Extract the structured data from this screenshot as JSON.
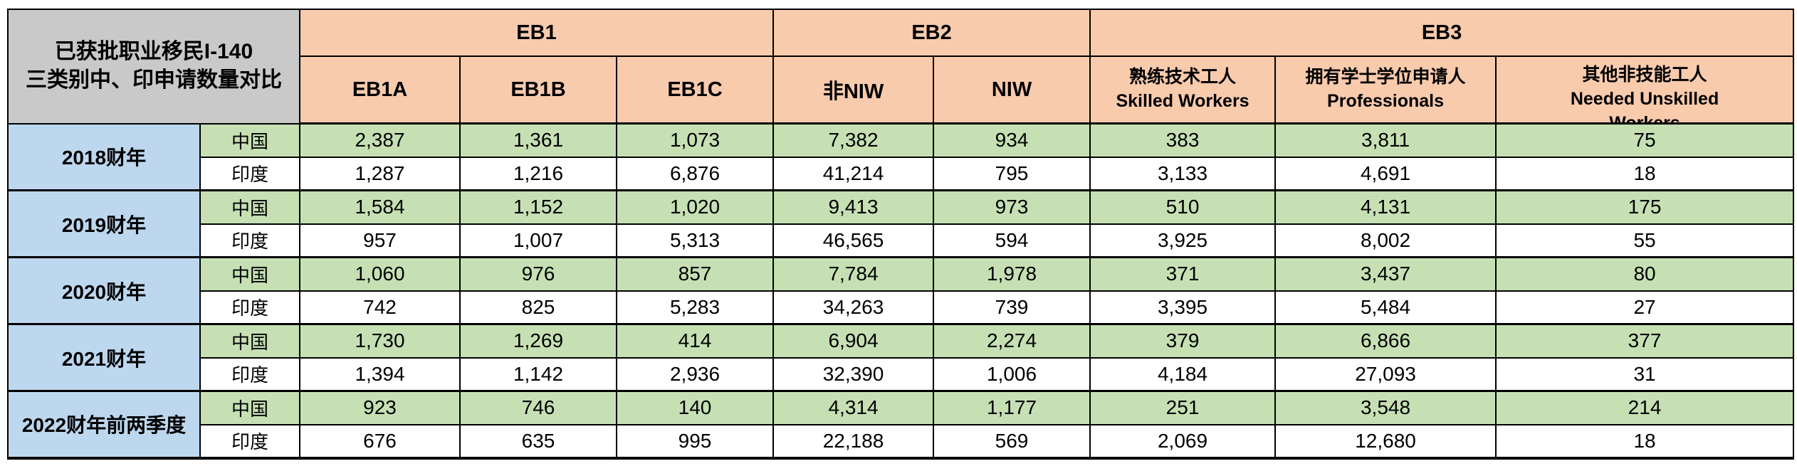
{
  "header": {
    "title_line1": "已获批职业移民I-140",
    "title_line2": "三类别中、印申请数量对比"
  },
  "column_groups": [
    {
      "label": "EB1"
    },
    {
      "label": "EB2"
    },
    {
      "label": "EB3"
    }
  ],
  "sub_columns": {
    "eb1a": "EB1A",
    "eb1b": "EB1B",
    "eb1c": "EB1C",
    "non_niw": "非NIW",
    "niw": "NIW",
    "skilled_zh": "熟练技术工人",
    "skilled_en": "Skilled Workers",
    "professionals_zh": "拥有学士学位申请人",
    "professionals_en": "Professionals",
    "unskilled_zh": "其他非技能工人",
    "unskilled_en": "Needed Unskilled",
    "unskilled_en2": "Workers"
  },
  "country_labels": {
    "china": "中国",
    "india": "印度"
  },
  "rows": [
    {
      "year": "2018财年",
      "china": [
        "2,387",
        "1,361",
        "1,073",
        "7,382",
        "934",
        "383",
        "3,811",
        "75"
      ],
      "india": [
        "1,287",
        "1,216",
        "6,876",
        "41,214",
        "795",
        "3,133",
        "4,691",
        "18"
      ]
    },
    {
      "year": "2019财年",
      "china": [
        "1,584",
        "1,152",
        "1,020",
        "9,413",
        "973",
        "510",
        "4,131",
        "175"
      ],
      "india": [
        "957",
        "1,007",
        "5,313",
        "46,565",
        "594",
        "3,925",
        "8,002",
        "55"
      ]
    },
    {
      "year": "2020财年",
      "china": [
        "1,060",
        "976",
        "857",
        "7,784",
        "1,978",
        "371",
        "3,437",
        "80"
      ],
      "india": [
        "742",
        "825",
        "5,283",
        "34,263",
        "739",
        "3,395",
        "5,484",
        "27"
      ]
    },
    {
      "year": "2021财年",
      "china": [
        "1,730",
        "1,269",
        "414",
        "6,904",
        "2,274",
        "379",
        "6,866",
        "377"
      ],
      "india": [
        "1,394",
        "1,142",
        "2,936",
        "32,390",
        "1,006",
        "4,184",
        "27,093",
        "31"
      ]
    },
    {
      "year": "2022财年前两季度",
      "china": [
        "923",
        "746",
        "140",
        "4,314",
        "1,177",
        "251",
        "3,548",
        "214"
      ],
      "india": [
        "676",
        "635",
        "995",
        "22,188",
        "569",
        "2,069",
        "12,680",
        "18"
      ]
    }
  ],
  "colors": {
    "header_orange": "#F8CBAD",
    "china_green": "#C6E0B4",
    "year_blue": "#BDD7EE",
    "title_gray": "#C9C9C9",
    "border_black": "#000000"
  },
  "chart_data": {
    "type": "table",
    "title": "已获批职业移民I-140三类别中、印申请数量对比",
    "column_groups": [
      {
        "label": "EB1",
        "columns": [
          "EB1A",
          "EB1B",
          "EB1C"
        ]
      },
      {
        "label": "EB2",
        "columns": [
          "非NIW",
          "NIW"
        ]
      },
      {
        "label": "EB3",
        "columns": [
          "熟练技术工人 Skilled Workers",
          "拥有学士学位申请人 Professionals",
          "其他非技能工人 Needed Unskilled Workers"
        ]
      }
    ],
    "rows": [
      {
        "fiscal_year": "2018财年",
        "country": "中国",
        "values": [
          2387,
          1361,
          1073,
          7382,
          934,
          383,
          3811,
          75
        ]
      },
      {
        "fiscal_year": "2018财年",
        "country": "印度",
        "values": [
          1287,
          1216,
          6876,
          41214,
          795,
          3133,
          4691,
          18
        ]
      },
      {
        "fiscal_year": "2019财年",
        "country": "中国",
        "values": [
          1584,
          1152,
          1020,
          9413,
          973,
          510,
          4131,
          175
        ]
      },
      {
        "fiscal_year": "2019财年",
        "country": "印度",
        "values": [
          957,
          1007,
          5313,
          46565,
          594,
          3925,
          8002,
          55
        ]
      },
      {
        "fiscal_year": "2020财年",
        "country": "中国",
        "values": [
          1060,
          976,
          857,
          7784,
          1978,
          371,
          3437,
          80
        ]
      },
      {
        "fiscal_year": "2020财年",
        "country": "印度",
        "values": [
          742,
          825,
          5283,
          34263,
          739,
          3395,
          5484,
          27
        ]
      },
      {
        "fiscal_year": "2021财年",
        "country": "中国",
        "values": [
          1730,
          1269,
          414,
          6904,
          2274,
          379,
          6866,
          377
        ]
      },
      {
        "fiscal_year": "2021财年",
        "country": "印度",
        "values": [
          1394,
          1142,
          2936,
          32390,
          1006,
          4184,
          27093,
          31
        ]
      },
      {
        "fiscal_year": "2022财年前两季度",
        "country": "中国",
        "values": [
          923,
          746,
          140,
          4314,
          1177,
          251,
          3548,
          214
        ]
      },
      {
        "fiscal_year": "2022财年前两季度",
        "country": "印度",
        "values": [
          676,
          635,
          995,
          22188,
          569,
          2069,
          12680,
          18
        ]
      }
    ]
  }
}
